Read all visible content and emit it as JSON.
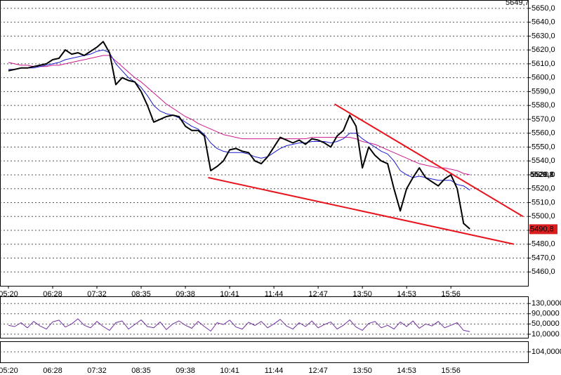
{
  "chart_data": [
    {
      "type": "line",
      "xlim": [
        -1.33,
        82.2
      ],
      "xticks": [
        {
          "value": 0,
          "label": "05:20"
        },
        {
          "value": 7,
          "label": "06:28"
        },
        {
          "value": 14,
          "label": "07:32"
        },
        {
          "value": 21,
          "label": "08:35"
        },
        {
          "value": 28,
          "label": "09:38"
        },
        {
          "value": 35,
          "label": "10:41"
        },
        {
          "value": 42,
          "label": "11:44"
        },
        {
          "value": 49,
          "label": "12:47"
        },
        {
          "value": 56,
          "label": "13:50"
        },
        {
          "value": 63,
          "label": "14:53"
        },
        {
          "value": 70,
          "label": "15:56"
        }
      ],
      "ylim": [
        5450,
        5656
      ],
      "yticks": [
        {
          "value": 5460,
          "label": "5460,0"
        },
        {
          "value": 5470,
          "label": "5470,0"
        },
        {
          "value": 5480,
          "label": "5480,0"
        },
        {
          "value": 5490,
          "label": "5490,0"
        },
        {
          "value": 5500,
          "label": "5500,0"
        },
        {
          "value": 5510,
          "label": "5510,0"
        },
        {
          "value": 5520,
          "label": "5520,0"
        },
        {
          "value": 5530,
          "label": "5530,0"
        },
        {
          "value": 5540,
          "label": "5540,0"
        },
        {
          "value": 5550,
          "label": "5550,0"
        },
        {
          "value": 5560,
          "label": "5560,0"
        },
        {
          "value": 5570,
          "label": "5570,0"
        },
        {
          "value": 5580,
          "label": "5580,0"
        },
        {
          "value": 5590,
          "label": "5590,0"
        },
        {
          "value": 5600,
          "label": "5600,0"
        },
        {
          "value": 5610,
          "label": "5610,0"
        },
        {
          "value": 5620,
          "label": "5620,0"
        },
        {
          "value": 5630,
          "label": "5630,0"
        },
        {
          "value": 5640,
          "label": "5640,0"
        },
        {
          "value": 5650,
          "label": "5650,0"
        }
      ],
      "grid": true,
      "series": [
        {
          "color": "#cc1a8c",
          "width": 1,
          "values": [
            5611,
            5610,
            5609,
            5609,
            5608,
            5608,
            5608,
            5609,
            5609,
            5610,
            5611,
            5612,
            5613,
            5614,
            5615,
            5616,
            5616,
            5612,
            5608,
            5604,
            5600,
            5597,
            5593,
            5589,
            5585,
            5581,
            5578,
            5575,
            5572,
            5570,
            5567,
            5565,
            5563,
            5561,
            5559,
            5558,
            5557,
            5556,
            5556,
            5556,
            5556,
            5556,
            5556,
            5556,
            5556,
            5556,
            5556,
            5556,
            5557,
            5557,
            5557,
            5557,
            5557,
            5557,
            5557,
            5556,
            5554,
            5553,
            5552,
            5550,
            5548,
            5546,
            5544,
            5542,
            5540,
            5538,
            5537,
            5536,
            5535,
            5535,
            5534,
            5533,
            5531,
            5530
          ]
        },
        {
          "color": "#1a1acc",
          "width": 1,
          "values": [
            5606,
            5606,
            5607,
            5607,
            5607,
            5608,
            5609,
            5610,
            5611,
            5613,
            5614,
            5615,
            5616,
            5617,
            5619,
            5620,
            5618,
            5610,
            5605,
            5600,
            5597,
            5593,
            5587,
            5580,
            5576,
            5574,
            5573,
            5571,
            5568,
            5565,
            5563,
            5559,
            5553,
            5549,
            5547,
            5546,
            5546,
            5546,
            5545,
            5543,
            5542,
            5543,
            5546,
            5549,
            5551,
            5552,
            5553,
            5553,
            5554,
            5554,
            5554,
            5553,
            5554,
            5556,
            5560,
            5560,
            5556,
            5553,
            5550,
            5547,
            5545,
            5540,
            5533,
            5530,
            5528,
            5529,
            5528,
            5527,
            5526,
            5526,
            5526,
            5523,
            5522,
            5519
          ]
        },
        {
          "color": "#000000",
          "width": 2,
          "values": [
            5605,
            5606,
            5607,
            5607,
            5608,
            5609,
            5610,
            5613,
            5614,
            5620,
            5617,
            5618,
            5616,
            5619,
            5622,
            5626,
            5618,
            5595,
            5600,
            5598,
            5597,
            5590,
            5580,
            5568,
            5570,
            5572,
            5573,
            5572,
            5565,
            5562,
            5562,
            5558,
            5533,
            5536,
            5540,
            5548,
            5549,
            5547,
            5546,
            5540,
            5538,
            5543,
            5550,
            5557,
            5555,
            5553,
            5555,
            5552,
            5556,
            5555,
            5553,
            5550,
            5558,
            5562,
            5573,
            5565,
            5535,
            5550,
            5544,
            5540,
            5538,
            5520,
            5504,
            5520,
            5528,
            5535,
            5528,
            5525,
            5522,
            5527,
            5530,
            5520,
            5495,
            5491
          ]
        }
      ],
      "trendlines": [
        {
          "color": "#e8141e",
          "x": [
            51.6,
            81.4
          ],
          "values": [
            5581,
            5500
          ]
        },
        {
          "color": "#e8141e",
          "x": [
            31.6,
            80
          ],
          "values": [
            5528,
            5480
          ]
        }
      ],
      "last_labels": [
        {
          "value": 5529.8,
          "label": "5529,8",
          "color": "#e0218a",
          "boxed": false
        },
        {
          "value": 5490.8,
          "label": "5490,8",
          "color": "#d81e1e",
          "boxed": true
        }
      ],
      "high_label": {
        "value": 5649.7,
        "label": "5649,7"
      }
    },
    {
      "type": "line",
      "xlim": [
        -1.33,
        82.2
      ],
      "ylim": [
        -4,
        158
      ],
      "yticks": [
        {
          "value": 10,
          "label": "10,0000"
        },
        {
          "value": 50,
          "label": "50,0000"
        },
        {
          "value": 90,
          "label": "90,0000"
        },
        {
          "value": 130,
          "label": "130,0000"
        }
      ],
      "grid": true,
      "series": [
        {
          "color": "#7030a0",
          "width": 1,
          "values": [
            45,
            40,
            55,
            35,
            60,
            42,
            30,
            58,
            65,
            38,
            50,
            70,
            45,
            35,
            60,
            40,
            25,
            55,
            62,
            30,
            48,
            66,
            40,
            35,
            58,
            28,
            50,
            62,
            45,
            33,
            60,
            40,
            22,
            55,
            48,
            65,
            38,
            30,
            57,
            44,
            60,
            35,
            50,
            68,
            42,
            30,
            55,
            40,
            62,
            35,
            48,
            58,
            30,
            45,
            66,
            38,
            25,
            52,
            60,
            35,
            45,
            30,
            58,
            40,
            62,
            33,
            50,
            42,
            60,
            35,
            45,
            55,
            25,
            20
          ]
        }
      ]
    },
    {
      "type": "line",
      "xlim": [
        -1.33,
        82.2
      ],
      "ylim": [
        90,
        118
      ],
      "yticks": [
        {
          "value": 104,
          "label": "104,0000"
        }
      ],
      "grid": true,
      "series": []
    }
  ]
}
